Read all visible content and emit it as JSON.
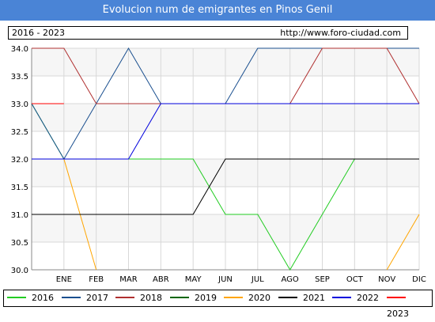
{
  "header": {
    "title": "Evolucion num de emigrantes en Pinos Genil",
    "period": "2016 - 2023",
    "url": "http://www.foro-ciudad.com"
  },
  "chart_data": {
    "type": "line",
    "title": "Evolucion num de emigrantes en Pinos Genil",
    "categories": [
      "",
      "ENE",
      "FEB",
      "MAR",
      "ABR",
      "MAY",
      "JUN",
      "JUL",
      "AGO",
      "SEP",
      "OCT",
      "NOV",
      "DIC"
    ],
    "ylim": [
      30.0,
      34.0
    ],
    "y_ticks": [
      "30.0",
      "30.5",
      "31.0",
      "31.5",
      "32.0",
      "32.5",
      "33.0",
      "33.5",
      "34.0"
    ],
    "grid": true,
    "legend_placement": "bottom",
    "series": [
      {
        "name": "2016",
        "color": "#22cc22",
        "values": [
          33,
          32,
          32,
          32,
          32,
          32,
          31,
          31,
          30,
          31,
          32,
          null,
          null
        ]
      },
      {
        "name": "2017",
        "color": "#1a4f8f",
        "values": [
          33,
          32,
          33,
          34,
          33,
          33,
          33,
          34,
          34,
          34,
          34,
          34,
          34
        ]
      },
      {
        "name": "2018",
        "color": "#b03030",
        "values": [
          34,
          34,
          33,
          33,
          33,
          33,
          33,
          33,
          33,
          34,
          34,
          34,
          33
        ]
      },
      {
        "name": "2019",
        "color": "#006600",
        "values": [
          null,
          null,
          null,
          null,
          null,
          null,
          null,
          null,
          null,
          null,
          null,
          null,
          null
        ]
      },
      {
        "name": "2020",
        "color": "#ffa500",
        "values": [
          null,
          32,
          30,
          null,
          null,
          null,
          null,
          null,
          null,
          null,
          null,
          30,
          31
        ]
      },
      {
        "name": "2021",
        "color": "#000000",
        "values": [
          31,
          31,
          31,
          31,
          31,
          31,
          32,
          32,
          32,
          32,
          32,
          32,
          32
        ]
      },
      {
        "name": "2022",
        "color": "#0000dd",
        "values": [
          32,
          32,
          32,
          32,
          33,
          33,
          33,
          33,
          33,
          33,
          33,
          33,
          33
        ]
      },
      {
        "name": "2023",
        "color": "#ff0000",
        "values": [
          33,
          33,
          null,
          null,
          null,
          null,
          null,
          null,
          null,
          null,
          null,
          null,
          null
        ]
      }
    ]
  }
}
